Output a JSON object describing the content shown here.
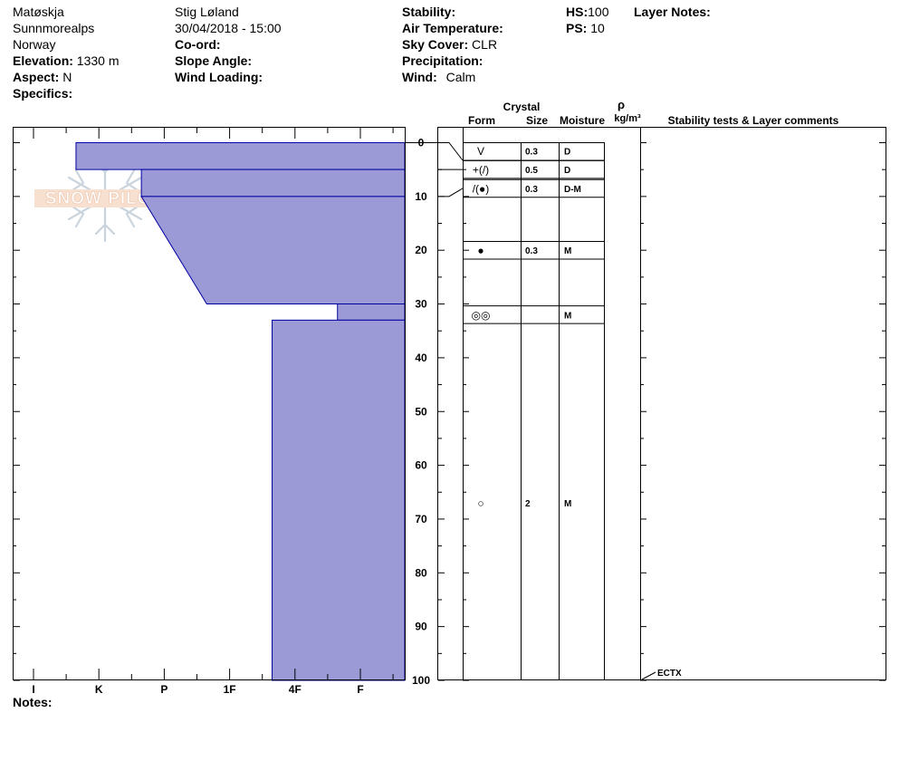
{
  "header": {
    "location": "Matøskja",
    "region": "Sunnmorealps",
    "country": "Norway",
    "elevation_label": "Elevation:",
    "elevation_value": "1330 m",
    "aspect_label": "Aspect:",
    "aspect_value": "N",
    "specifics_label": "Specifics:",
    "observer": "Stig Løland",
    "datetime": "30/04/2018 - 15:00",
    "coord_label": "Co-ord:",
    "slope_label": "Slope Angle:",
    "wind_loading_label": "Wind Loading:",
    "stability_label": "Stability:",
    "air_temp_label": "Air Temperature:",
    "sky_label": "Sky Cover:",
    "sky_value": "CLR",
    "precip_label": "Precipitation:",
    "wind_label": "Wind:",
    "wind_value": "Calm",
    "hs_label": "HS:",
    "hs_value": "100",
    "ps_label": "PS:",
    "ps_value": "10",
    "layer_notes_label": "Layer Notes:"
  },
  "notes_label": "Notes:",
  "watermark": "SNOW PILOT",
  "columns": {
    "crystal": "Crystal",
    "form": "Form",
    "size": "Size",
    "moisture": "Moisture",
    "rho": "ρ",
    "density_unit": "kg/m³",
    "comments": "Stability tests & Layer comments"
  },
  "chart_data": {
    "type": "area",
    "hardness_scale": [
      "I",
      "K",
      "P",
      "1F",
      "4F",
      "F"
    ],
    "depth_ticks": [
      0,
      10,
      20,
      30,
      40,
      50,
      60,
      70,
      80,
      90,
      100
    ],
    "ylim": [
      0,
      100
    ],
    "layers": [
      {
        "top": 0,
        "bottom": 5,
        "hardness_top": 0.65,
        "hardness_bottom": 0.65,
        "form": "V",
        "size": "0.3",
        "moisture": "D"
      },
      {
        "top": 5,
        "bottom": 10,
        "hardness_top": 1.65,
        "hardness_bottom": 1.65,
        "form": "+(/)",
        "size": "0.5",
        "moisture": "D"
      },
      {
        "top": 10,
        "bottom": 30,
        "hardness_top": 1.65,
        "hardness_bottom": 2.65,
        "form": "/(●)",
        "size": "0.3",
        "moisture": "D-M"
      },
      {
        "top": 30,
        "bottom": 33,
        "hardness_top": 4.65,
        "hardness_bottom": 4.65,
        "form": "◎◎",
        "size": "",
        "moisture": "M"
      },
      {
        "top": 33,
        "bottom": 100,
        "hardness_top": 3.65,
        "hardness_bottom": 3.65,
        "form": "○",
        "size": "2",
        "moisture": "M"
      }
    ],
    "layer_boundaries": [
      0,
      5,
      10,
      30,
      33,
      100
    ],
    "grain_rows": [
      {
        "depth": 1.5,
        "form": "V",
        "size": "0.3",
        "moisture": "D"
      },
      {
        "depth": 5,
        "form": "+(/)",
        "size": "0.5",
        "moisture": "D"
      },
      {
        "depth": 8.5,
        "form": "/(●)",
        "size": "0.3",
        "moisture": "D-M"
      },
      {
        "depth": 20,
        "form": "●",
        "size": "0.3",
        "moisture": "M"
      },
      {
        "depth": 32,
        "form": "◎◎",
        "size": "",
        "moisture": "M"
      },
      {
        "depth": 67,
        "form": "○",
        "size": "2",
        "moisture": "M"
      }
    ],
    "stability_tests": [
      {
        "depth": 100,
        "label": "ECTX"
      }
    ]
  }
}
